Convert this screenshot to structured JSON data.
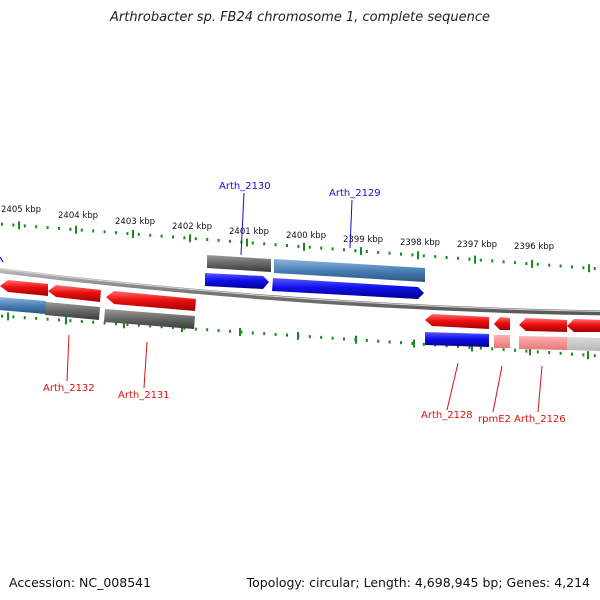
{
  "title": "Arthrobacter sp. FB24 chromosome 1, complete sequence",
  "footer": {
    "accession": "Accession: NC_008541",
    "summary": "Topology: circular; Length: 4,698,945 bp; Genes: 4,214"
  },
  "scale": {
    "ticks": [
      "2405 kbp",
      "2404 kbp",
      "2403 kbp",
      "2402 kbp",
      "2401 kbp",
      "2400 kbp",
      "2399 kbp",
      "2398 kbp",
      "2397 kbp",
      "2396 kbp"
    ]
  },
  "genes": {
    "forward": [
      "Arth_2130",
      "Arth_2129"
    ],
    "reverse": [
      "Arth_2132",
      "Arth_2131",
      "Arth_2128",
      "rpmE2",
      "Arth_2126"
    ]
  },
  "colors": {
    "forward": "#1010ee",
    "reverse": "#ee1010",
    "cds_forward": "#4a7fb5",
    "cds_reverse": "#666666",
    "tick": "#1a8a1a",
    "backbone": "#8a8a8a"
  }
}
